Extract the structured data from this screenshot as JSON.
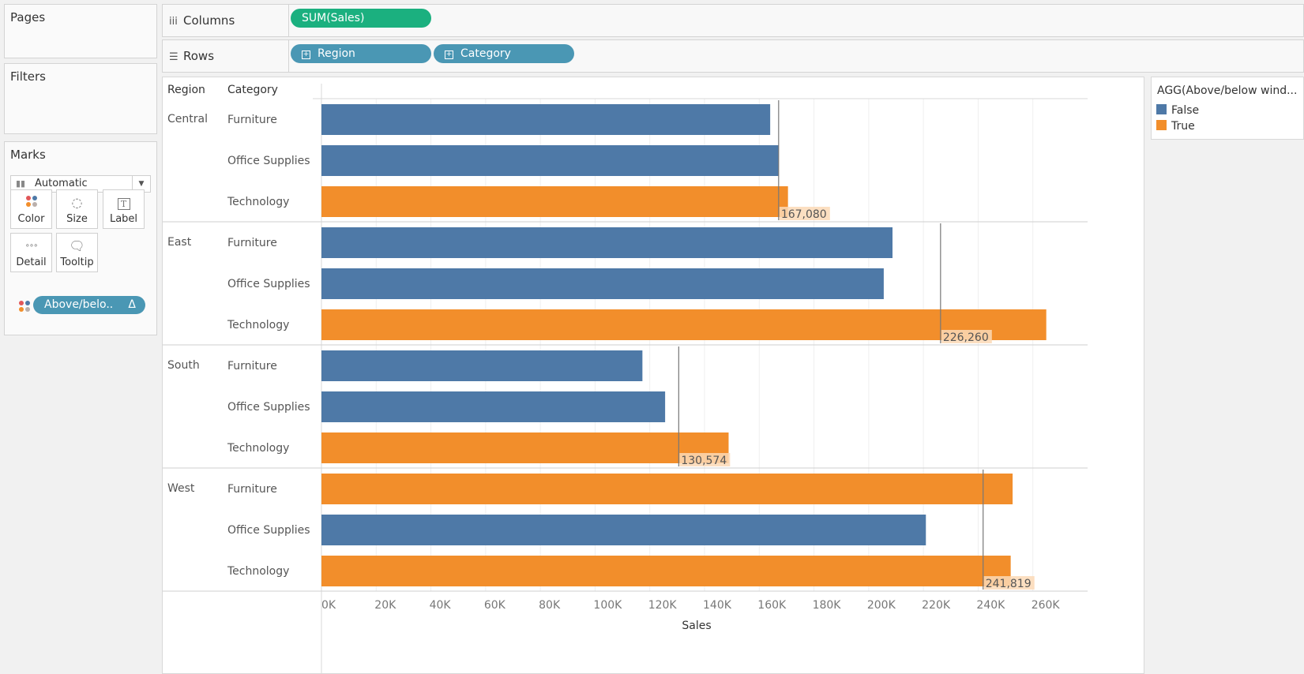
{
  "panels": {
    "pages_title": "Pages",
    "filters_title": "Filters",
    "marks": {
      "title": "Marks",
      "mark_type": "Automatic",
      "buttons": {
        "color": "Color",
        "size": "Size",
        "label": "Label",
        "detail": "Detail",
        "tooltip": "Tooltip"
      },
      "color_pill": "Above/belo..",
      "color_pill_symbol": "Δ"
    }
  },
  "shelves": {
    "columns_label": "Columns",
    "columns_icon": "iii",
    "rows_label": "Rows",
    "rows_icon": "☰",
    "columns_pills": [
      "SUM(Sales)"
    ],
    "rows_pills": [
      "Region",
      "Category"
    ]
  },
  "legend": {
    "title": "AGG(Above/below wind...",
    "items": [
      {
        "label": "False",
        "color": "#4e79a7"
      },
      {
        "label": "True",
        "color": "#f28e2b"
      }
    ]
  },
  "chart_data": {
    "type": "bar",
    "orientation": "horizontal",
    "row_headers": [
      "Region",
      "Category"
    ],
    "xlabel": "Sales",
    "xlim": [
      0,
      280000
    ],
    "x_ticks": [
      0,
      20000,
      40000,
      60000,
      80000,
      100000,
      120000,
      140000,
      160000,
      180000,
      200000,
      220000,
      240000,
      260000
    ],
    "x_tick_labels": [
      "0K",
      "20K",
      "40K",
      "60K",
      "80K",
      "100K",
      "120K",
      "140K",
      "160K",
      "180K",
      "200K",
      "220K",
      "240K",
      "260K"
    ],
    "grid": true,
    "legend_placement": "right",
    "colors": {
      "False": "#4e79a7",
      "True": "#f28e2b"
    },
    "groups": [
      {
        "region": "Central",
        "reference_value": 167080,
        "reference_label": "167,080",
        "bars": [
          {
            "category": "Furniture",
            "value": 164000,
            "above": "False"
          },
          {
            "category": "Office Supplies",
            "value": 167000,
            "above": "False"
          },
          {
            "category": "Technology",
            "value": 170500,
            "above": "True"
          }
        ]
      },
      {
        "region": "East",
        "reference_value": 226260,
        "reference_label": "226,260",
        "bars": [
          {
            "category": "Furniture",
            "value": 208700,
            "above": "False"
          },
          {
            "category": "Office Supplies",
            "value": 205500,
            "above": "False"
          },
          {
            "category": "Technology",
            "value": 264900,
            "above": "True"
          }
        ]
      },
      {
        "region": "South",
        "reference_value": 130574,
        "reference_label": "130,574",
        "bars": [
          {
            "category": "Furniture",
            "value": 117300,
            "above": "False"
          },
          {
            "category": "Office Supplies",
            "value": 125600,
            "above": "False"
          },
          {
            "category": "Technology",
            "value": 148800,
            "above": "True"
          }
        ]
      },
      {
        "region": "West",
        "reference_value": 241819,
        "reference_label": "241,819",
        "bars": [
          {
            "category": "Furniture",
            "value": 252600,
            "above": "True"
          },
          {
            "category": "Office Supplies",
            "value": 220900,
            "above": "False"
          },
          {
            "category": "Technology",
            "value": 251900,
            "above": "True"
          }
        ]
      }
    ]
  }
}
